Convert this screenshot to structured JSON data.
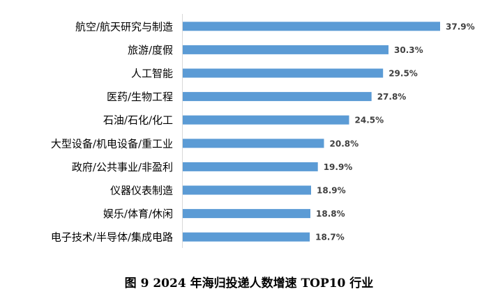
{
  "caption": "图 9   2024 年海归投递人数增速 TOP10 行业",
  "chart_data": {
    "type": "bar",
    "orientation": "horizontal",
    "categories": [
      "航空/航天研究与制造",
      "旅游/度假",
      "人工智能",
      "医药/生物工程",
      "石油/石化/化工",
      "大型设备/机电设备/重工业",
      "政府/公共事业/非盈利",
      "仪器仪表制造",
      "娱乐/体育/休闲",
      "电子技术/半导体/集成电路"
    ],
    "values": [
      37.9,
      30.3,
      29.5,
      27.8,
      24.5,
      20.8,
      19.9,
      18.9,
      18.8,
      18.7
    ],
    "value_labels": [
      "37.9%",
      "30.3%",
      "29.5%",
      "27.8%",
      "24.5%",
      "20.8%",
      "19.9%",
      "18.9%",
      "18.8%",
      "18.7%"
    ],
    "xlim": [
      0,
      40
    ],
    "grid": false,
    "bar_color": "#5b9bd5"
  }
}
